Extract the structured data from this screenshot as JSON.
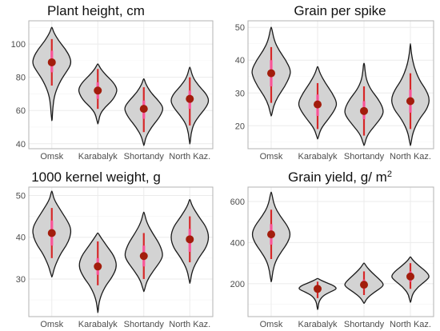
{
  "colors": {
    "violin_fill": "#d3d3d3",
    "violin_stroke": "#1a1a1a",
    "whisker": "#d62728",
    "iqr": "#ff5ea8",
    "median_point": "#a21d0c",
    "grid": "#ebebeb",
    "panel_border": "#b3b3b3"
  },
  "chart_data": [
    {
      "type": "violin",
      "title": "Plant height, cm",
      "categories": [
        "Omsk",
        "Karabalyk",
        "Shortandy",
        "North Kaz."
      ],
      "ylim": [
        37,
        114
      ],
      "yticks": [
        40,
        60,
        80,
        100
      ],
      "grid": true,
      "series": [
        {
          "median": 89,
          "q1": 83,
          "q3": 96,
          "whisker_low": 75,
          "whisker_high": 103,
          "min": 54,
          "max": 110,
          "density": [
            [
              54,
              0.02
            ],
            [
              62,
              0.05
            ],
            [
              70,
              0.15
            ],
            [
              78,
              0.45
            ],
            [
              84,
              0.8
            ],
            [
              88,
              1.0
            ],
            [
              92,
              0.95
            ],
            [
              97,
              0.7
            ],
            [
              102,
              0.35
            ],
            [
              107,
              0.1
            ],
            [
              110,
              0.02
            ]
          ]
        },
        {
          "median": 72,
          "q1": 67,
          "q3": 77,
          "whisker_low": 61,
          "whisker_high": 85,
          "min": 52,
          "max": 88,
          "density": [
            [
              52,
              0.02
            ],
            [
              58,
              0.12
            ],
            [
              62,
              0.38
            ],
            [
              66,
              0.75
            ],
            [
              70,
              0.95
            ],
            [
              73,
              1.0
            ],
            [
              77,
              0.8
            ],
            [
              81,
              0.45
            ],
            [
              85,
              0.15
            ],
            [
              88,
              0.02
            ]
          ]
        },
        {
          "median": 61,
          "q1": 55,
          "q3": 66,
          "whisker_low": 47,
          "whisker_high": 74,
          "min": 39,
          "max": 79,
          "density": [
            [
              39,
              0.02
            ],
            [
              44,
              0.1
            ],
            [
              50,
              0.4
            ],
            [
              55,
              0.75
            ],
            [
              59,
              0.95
            ],
            [
              62,
              1.0
            ],
            [
              66,
              0.75
            ],
            [
              71,
              0.35
            ],
            [
              76,
              0.1
            ],
            [
              79,
              0.02
            ]
          ]
        },
        {
          "median": 67,
          "q1": 61,
          "q3": 72,
          "whisker_low": 51,
          "whisker_high": 80,
          "min": 40,
          "max": 86,
          "density": [
            [
              40,
              0.02
            ],
            [
              46,
              0.06
            ],
            [
              52,
              0.2
            ],
            [
              57,
              0.5
            ],
            [
              62,
              0.85
            ],
            [
              66,
              1.0
            ],
            [
              70,
              0.85
            ],
            [
              75,
              0.45
            ],
            [
              80,
              0.15
            ],
            [
              86,
              0.02
            ]
          ]
        }
      ]
    },
    {
      "type": "violin",
      "title": "Grain per spike",
      "categories": [
        "Omsk",
        "Karabalyk",
        "Shortandy",
        "North Kaz."
      ],
      "ylim": [
        13,
        52
      ],
      "yticks": [
        20,
        30,
        40,
        50
      ],
      "grid": true,
      "series": [
        {
          "median": 36,
          "q1": 32,
          "q3": 40,
          "whisker_low": 27,
          "whisker_high": 44,
          "min": 23,
          "max": 50,
          "density": [
            [
              23,
              0.02
            ],
            [
              26,
              0.12
            ],
            [
              29,
              0.35
            ],
            [
              32,
              0.7
            ],
            [
              35,
              0.95
            ],
            [
              37,
              1.0
            ],
            [
              40,
              0.75
            ],
            [
              43,
              0.4
            ],
            [
              46,
              0.15
            ],
            [
              50,
              0.02
            ]
          ]
        },
        {
          "median": 26.5,
          "q1": 23,
          "q3": 29.5,
          "whisker_low": 19,
          "whisker_high": 33,
          "min": 16,
          "max": 38,
          "density": [
            [
              16,
              0.02
            ],
            [
              19,
              0.15
            ],
            [
              22,
              0.55
            ],
            [
              25,
              0.9
            ],
            [
              27,
              1.0
            ],
            [
              30,
              0.75
            ],
            [
              33,
              0.4
            ],
            [
              36,
              0.12
            ],
            [
              38,
              0.02
            ]
          ]
        },
        {
          "median": 24.5,
          "q1": 22,
          "q3": 27.5,
          "whisker_low": 17,
          "whisker_high": 32,
          "min": 14,
          "max": 39,
          "density": [
            [
              14,
              0.02
            ],
            [
              17,
              0.15
            ],
            [
              20,
              0.55
            ],
            [
              23,
              0.95
            ],
            [
              25,
              1.0
            ],
            [
              28,
              0.75
            ],
            [
              31,
              0.35
            ],
            [
              34,
              0.12
            ],
            [
              37,
              0.05
            ],
            [
              39,
              0.02
            ]
          ]
        },
        {
          "median": 27.5,
          "q1": 24,
          "q3": 31,
          "whisker_low": 19,
          "whisker_high": 36,
          "min": 14,
          "max": 45,
          "density": [
            [
              14,
              0.02
            ],
            [
              18,
              0.12
            ],
            [
              22,
              0.45
            ],
            [
              25,
              0.85
            ],
            [
              28,
              1.0
            ],
            [
              31,
              0.8
            ],
            [
              34,
              0.45
            ],
            [
              38,
              0.18
            ],
            [
              42,
              0.05
            ],
            [
              45,
              0.01
            ]
          ]
        }
      ]
    },
    {
      "type": "violin",
      "title": "1000 kernel weight, g",
      "categories": [
        "Omsk",
        "Karabalyk",
        "Shortandy",
        "North Kaz."
      ],
      "ylim": [
        21,
        52
      ],
      "yticks": [
        30,
        40,
        50
      ],
      "grid": true,
      "series": [
        {
          "median": 41,
          "q1": 38,
          "q3": 44,
          "whisker_low": 35,
          "whisker_high": 47,
          "min": 30.5,
          "max": 51,
          "density": [
            [
              30.5,
              0.02
            ],
            [
              33,
              0.15
            ],
            [
              36,
              0.45
            ],
            [
              38,
              0.75
            ],
            [
              40,
              0.95
            ],
            [
              42,
              1.0
            ],
            [
              44,
              0.8
            ],
            [
              46.5,
              0.45
            ],
            [
              49,
              0.12
            ],
            [
              51,
              0.02
            ]
          ]
        },
        {
          "median": 33,
          "q1": 31,
          "q3": 35,
          "whisker_low": 28.5,
          "whisker_high": 39,
          "min": 22,
          "max": 41,
          "density": [
            [
              22,
              0.01
            ],
            [
              25,
              0.08
            ],
            [
              28,
              0.35
            ],
            [
              30.5,
              0.75
            ],
            [
              33,
              1.0
            ],
            [
              35.5,
              0.85
            ],
            [
              38,
              0.45
            ],
            [
              40,
              0.15
            ],
            [
              41,
              0.02
            ]
          ]
        },
        {
          "median": 35.5,
          "q1": 33,
          "q3": 38,
          "whisker_low": 30,
          "whisker_high": 41,
          "min": 27,
          "max": 46,
          "density": [
            [
              27,
              0.02
            ],
            [
              29.5,
              0.15
            ],
            [
              32,
              0.5
            ],
            [
              34.5,
              0.9
            ],
            [
              36,
              1.0
            ],
            [
              38.5,
              0.8
            ],
            [
              41,
              0.45
            ],
            [
              43.5,
              0.15
            ],
            [
              46,
              0.02
            ]
          ]
        },
        {
          "median": 39.5,
          "q1": 36.5,
          "q3": 42,
          "whisker_low": 34,
          "whisker_high": 45,
          "min": 29,
          "max": 49,
          "density": [
            [
              29,
              0.02
            ],
            [
              32,
              0.12
            ],
            [
              35,
              0.45
            ],
            [
              37.5,
              0.85
            ],
            [
              40,
              1.0
            ],
            [
              42.5,
              0.85
            ],
            [
              45,
              0.45
            ],
            [
              47.5,
              0.12
            ],
            [
              49,
              0.02
            ]
          ]
        }
      ]
    },
    {
      "type": "violin",
      "title": "Grain yield, g/ m",
      "title_superscript": "2",
      "categories": [
        "Omsk",
        "Karabalyk",
        "Shortandy",
        "North Kaz."
      ],
      "ylim": [
        40,
        670
      ],
      "yticks": [
        200,
        400,
        600
      ],
      "grid": true,
      "series": [
        {
          "median": 440,
          "q1": 390,
          "q3": 490,
          "whisker_low": 320,
          "whisker_high": 560,
          "min": 210,
          "max": 645,
          "density": [
            [
              210,
              0.02
            ],
            [
              260,
              0.08
            ],
            [
              310,
              0.22
            ],
            [
              360,
              0.55
            ],
            [
              400,
              0.85
            ],
            [
              440,
              1.0
            ],
            [
              480,
              0.85
            ],
            [
              530,
              0.45
            ],
            [
              580,
              0.15
            ],
            [
              645,
              0.02
            ]
          ]
        },
        {
          "median": 175,
          "q1": 160,
          "q3": 190,
          "whisker_low": 130,
          "whisker_high": 210,
          "min": 75,
          "max": 225,
          "density": [
            [
              75,
              0.02
            ],
            [
              110,
              0.05
            ],
            [
              140,
              0.25
            ],
            [
              160,
              0.65
            ],
            [
              175,
              1.0
            ],
            [
              190,
              0.85
            ],
            [
              205,
              0.45
            ],
            [
              218,
              0.15
            ],
            [
              225,
              0.02
            ]
          ]
        },
        {
          "median": 195,
          "q1": 175,
          "q3": 220,
          "whisker_low": 145,
          "whisker_high": 260,
          "min": 105,
          "max": 300,
          "density": [
            [
              105,
              0.02
            ],
            [
              130,
              0.15
            ],
            [
              160,
              0.55
            ],
            [
              185,
              0.95
            ],
            [
              200,
              1.0
            ],
            [
              225,
              0.75
            ],
            [
              255,
              0.4
            ],
            [
              280,
              0.15
            ],
            [
              300,
              0.02
            ]
          ]
        },
        {
          "median": 235,
          "q1": 210,
          "q3": 260,
          "whisker_low": 175,
          "whisker_high": 300,
          "min": 110,
          "max": 330,
          "density": [
            [
              110,
              0.02
            ],
            [
              150,
              0.1
            ],
            [
              185,
              0.4
            ],
            [
              215,
              0.8
            ],
            [
              235,
              1.0
            ],
            [
              260,
              0.8
            ],
            [
              290,
              0.4
            ],
            [
              315,
              0.12
            ],
            [
              330,
              0.02
            ]
          ]
        }
      ]
    }
  ]
}
